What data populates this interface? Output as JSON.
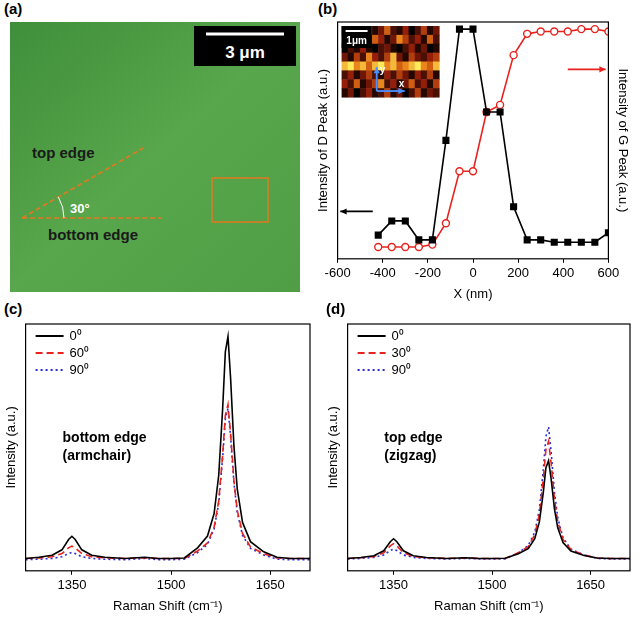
{
  "image_panel": {
    "panel_label": "(a)",
    "scale_bar": "3 μm",
    "top_edge": "top edge",
    "bottom_edge": "bottom edge",
    "angle": 30,
    "angle_label": "30°"
  },
  "chart_data": [
    {
      "panel_label": "(b)",
      "type": "line",
      "x_label": "X (nm)",
      "y_label": "Intensity of D Peak (a.u.)",
      "y2_label": "Intensity of G Peak (a.u.)",
      "x": [
        -420,
        -360,
        -300,
        -240,
        -180,
        -120,
        -60,
        0,
        60,
        120,
        180,
        240,
        300,
        360,
        420,
        480,
        540,
        600
      ],
      "series": [
        {
          "color": "#000000",
          "marker": "square",
          "line_style": "solid",
          "axis": "y",
          "values": [
            0.1,
            0.16,
            0.16,
            0.08,
            0.08,
            0.5,
            0.97,
            0.97,
            0.62,
            0.62,
            0.22,
            0.08,
            0.08,
            0.07,
            0.07,
            0.07,
            0.07,
            0.11
          ]
        },
        {
          "color": "#e8231f",
          "marker": "circle_open",
          "line_style": "solid",
          "axis": "y2",
          "values": [
            0.05,
            0.05,
            0.05,
            0.05,
            0.06,
            0.15,
            0.37,
            0.37,
            0.62,
            0.65,
            0.86,
            0.95,
            0.96,
            0.96,
            0.96,
            0.97,
            0.97,
            0.96
          ]
        }
      ],
      "xlim": [
        -600,
        600
      ],
      "xticks": [
        -600,
        -400,
        -200,
        0,
        200,
        400,
        600
      ],
      "ylim": [
        0,
        1
      ],
      "yticks": [],
      "y2lim": [
        0,
        1
      ],
      "y2ticks": [],
      "tick_labels": "x",
      "grid": false,
      "inset": {
        "scale_bar": "1μm",
        "axis_labels": {
          "x": "x",
          "y": "y"
        },
        "cells": [
          [
            0.2,
            0.5,
            0.3,
            0.1,
            0.6,
            0.2,
            0.4,
            0.7,
            0.3,
            0.2,
            0.5,
            0.1,
            0.3,
            0.6,
            0.2,
            0.4
          ],
          [
            0.6,
            0.8,
            0.5,
            0.4,
            0.3,
            0.7,
            0.5,
            0.2,
            0.4,
            0.8,
            0.6,
            0.3,
            0.5,
            0.2,
            0.7,
            0.3
          ],
          [
            0.1,
            0.3,
            0.2,
            0.5,
            0.2,
            0.1,
            0.3,
            0.4,
            0.2,
            0.1,
            0.3,
            0.5,
            0.2,
            0.4,
            0.1,
            0.2
          ],
          [
            0.4,
            0.2,
            0.6,
            0.3,
            0.8,
            0.5,
            0.3,
            0.6,
            0.9,
            0.4,
            0.2,
            0.6,
            0.4,
            0.3,
            0.5,
            0.6
          ],
          [
            0.9,
            1.0,
            0.8,
            0.9,
            0.7,
            0.9,
            1.0,
            0.8,
            0.9,
            0.7,
            0.8,
            0.9,
            1.0,
            0.8,
            0.7,
            0.9
          ],
          [
            0.3,
            0.5,
            0.2,
            0.4,
            0.6,
            0.3,
            0.2,
            0.5,
            0.3,
            0.6,
            0.4,
            0.2,
            0.5,
            0.3,
            0.6,
            0.2
          ],
          [
            0.5,
            0.3,
            0.7,
            0.2,
            0.4,
            0.6,
            0.8,
            0.3,
            0.5,
            0.2,
            0.4,
            0.7,
            0.3,
            0.5,
            0.2,
            0.6
          ],
          [
            0.2,
            0.4,
            0.1,
            0.3,
            0.5,
            0.2,
            0.3,
            0.6,
            0.2,
            0.4,
            0.1,
            0.3,
            0.6,
            0.2,
            0.4,
            0.3
          ]
        ]
      }
    },
    {
      "panel_label": "(c)",
      "type": "line",
      "x_label": "Raman Shift (cm⁻¹)",
      "y_label": "Intensity (a.u.)",
      "annotation": [
        "bottom edge",
        "(armchair)"
      ],
      "x": [
        1280,
        1300,
        1320,
        1335,
        1345,
        1350,
        1355,
        1365,
        1380,
        1400,
        1430,
        1460,
        1480,
        1500,
        1520,
        1540,
        1555,
        1565,
        1572,
        1578,
        1582,
        1586,
        1590,
        1595,
        1600,
        1608,
        1620,
        1640,
        1660,
        1680,
        1700,
        1710
      ],
      "series": [
        {
          "name": "0⁰",
          "color": "#000000",
          "line_style": "solid",
          "marker": "none",
          "values": [
            0.05,
            0.055,
            0.063,
            0.085,
            0.127,
            0.14,
            0.127,
            0.085,
            0.063,
            0.055,
            0.05,
            0.055,
            0.05,
            0.05,
            0.052,
            0.093,
            0.141,
            0.232,
            0.387,
            0.66,
            0.887,
            0.95,
            0.778,
            0.505,
            0.332,
            0.196,
            0.118,
            0.077,
            0.055,
            0.05,
            0.05,
            0.05
          ]
        },
        {
          "name": "60⁰",
          "color": "#e8231f",
          "line_style": "dashed",
          "marker": "none",
          "values": [
            0.05,
            0.052,
            0.057,
            0.07,
            0.093,
            0.1,
            0.093,
            0.07,
            0.057,
            0.052,
            0.05,
            0.053,
            0.05,
            0.05,
            0.05,
            0.08,
            0.113,
            0.176,
            0.283,
            0.472,
            0.63,
            0.674,
            0.554,
            0.365,
            0.245,
            0.151,
            0.097,
            0.069,
            0.052,
            0.05,
            0.05,
            0.05
          ]
        },
        {
          "name": "90⁰",
          "color": "#2b2bd6",
          "line_style": "dotted",
          "marker": "none",
          "values": [
            0.045,
            0.047,
            0.05,
            0.057,
            0.07,
            0.075,
            0.07,
            0.057,
            0.05,
            0.047,
            0.045,
            0.05,
            0.045,
            0.045,
            0.047,
            0.074,
            0.107,
            0.169,
            0.274,
            0.46,
            0.615,
            0.659,
            0.541,
            0.355,
            0.237,
            0.144,
            0.091,
            0.064,
            0.047,
            0.045,
            0.045,
            0.045
          ]
        }
      ],
      "xlim": [
        1280,
        1710
      ],
      "xticks": [
        1350,
        1500,
        1650
      ],
      "ylim": [
        0,
        1
      ],
      "yticks": [],
      "tick_labels": "x",
      "grid": false,
      "legend": "upper left"
    },
    {
      "panel_label": "(d)",
      "type": "line",
      "x_label": "Raman Shift (cm⁻¹)",
      "y_label": "Intensity (a.u.)",
      "annotation": [
        "top edge",
        "(zigzag)"
      ],
      "x": [
        1280,
        1300,
        1320,
        1335,
        1345,
        1350,
        1355,
        1365,
        1380,
        1400,
        1430,
        1460,
        1480,
        1500,
        1520,
        1540,
        1555,
        1565,
        1572,
        1578,
        1582,
        1586,
        1590,
        1595,
        1600,
        1608,
        1620,
        1640,
        1660,
        1680,
        1700,
        1710
      ],
      "series": [
        {
          "name": "0⁰",
          "color": "#000000",
          "line_style": "solid",
          "marker": "none",
          "values": [
            0.05,
            0.054,
            0.061,
            0.081,
            0.118,
            0.13,
            0.118,
            0.081,
            0.061,
            0.054,
            0.05,
            0.053,
            0.05,
            0.05,
            0.051,
            0.069,
            0.09,
            0.13,
            0.198,
            0.318,
            0.418,
            0.446,
            0.37,
            0.25,
            0.174,
            0.114,
            0.08,
            0.062,
            0.052,
            0.05,
            0.05,
            0.05
          ]
        },
        {
          "name": "30⁰",
          "color": "#e8231f",
          "line_style": "dashed",
          "marker": "none",
          "values": [
            0.05,
            0.053,
            0.058,
            0.073,
            0.101,
            0.11,
            0.101,
            0.073,
            0.058,
            0.053,
            0.05,
            0.052,
            0.05,
            0.05,
            0.05,
            0.073,
            0.098,
            0.146,
            0.228,
            0.372,
            0.492,
            0.525,
            0.434,
            0.29,
            0.199,
            0.127,
            0.086,
            0.064,
            0.052,
            0.05,
            0.05,
            0.05
          ]
        },
        {
          "name": "90⁰",
          "color": "#2b2bd6",
          "line_style": "dotted",
          "marker": "none",
          "values": [
            0.048,
            0.05,
            0.054,
            0.064,
            0.082,
            0.088,
            0.082,
            0.064,
            0.054,
            0.05,
            0.048,
            0.05,
            0.048,
            0.048,
            0.048,
            0.073,
            0.102,
            0.156,
            0.248,
            0.41,
            0.545,
            0.583,
            0.48,
            0.318,
            0.215,
            0.134,
            0.088,
            0.064,
            0.05,
            0.048,
            0.048,
            0.048
          ]
        }
      ],
      "xlim": [
        1280,
        1710
      ],
      "xticks": [
        1350,
        1500,
        1650
      ],
      "ylim": [
        0,
        1
      ],
      "yticks": [],
      "tick_labels": "x",
      "grid": false,
      "legend": "upper left"
    }
  ]
}
